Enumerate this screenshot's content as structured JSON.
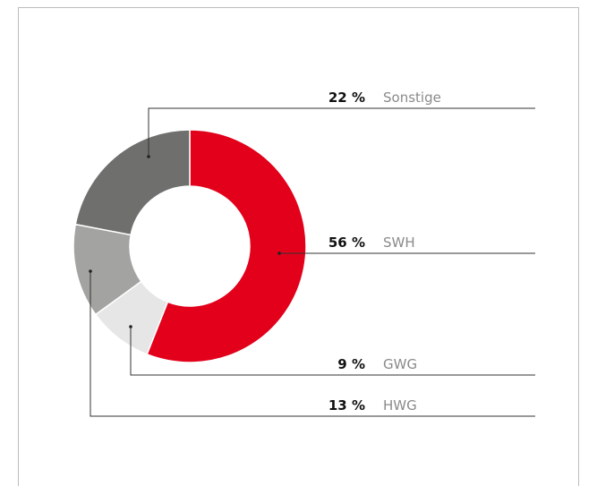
{
  "chart_data": {
    "type": "donut",
    "categories": [
      "SWH",
      "GWG",
      "HWG",
      "Sonstige"
    ],
    "values": [
      56,
      9,
      13,
      22
    ],
    "value_labels": [
      "56 %",
      "9 %",
      "13 %",
      "22 %"
    ],
    "colors": [
      "#e2001a",
      "#e6e6e6",
      "#a3a3a2",
      "#6f6f6e"
    ]
  }
}
